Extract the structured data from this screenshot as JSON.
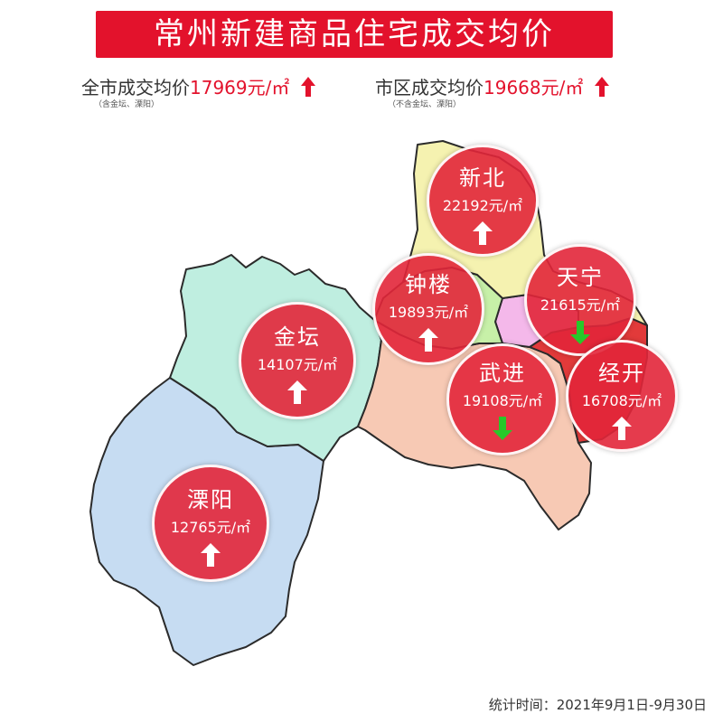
{
  "title": "常州新建商品住宅成交均价",
  "city_avg": {
    "label": "全市成交均价",
    "value": "17969元/㎡",
    "note": "（含金坛、溧阳）",
    "trend": "up"
  },
  "urban_avg": {
    "label": "市区成交均价",
    "value": "19668元/㎡",
    "note": "（不含金坛、溧阳）",
    "trend": "up"
  },
  "districts": [
    {
      "name": "新北",
      "price": "22192元/㎡",
      "trend": "up"
    },
    {
      "name": "钟楼",
      "price": "19893元/㎡",
      "trend": "up"
    },
    {
      "name": "天宁",
      "price": "21615元/㎡",
      "trend": "down"
    },
    {
      "name": "武进",
      "price": "19108元/㎡",
      "trend": "down"
    },
    {
      "name": "经开",
      "price": "16708元/㎡",
      "trend": "up"
    },
    {
      "name": "金坛",
      "price": "14107元/㎡",
      "trend": "up"
    },
    {
      "name": "溧阳",
      "price": "12765元/㎡",
      "trend": "up"
    }
  ],
  "colors": {
    "accent_red": "#e3122c",
    "trend_up": "#ffffff",
    "trend_down": "#27c82a",
    "region_xinbei": "#f5f2b0",
    "region_zhonglou": "#c7f0a8",
    "region_tianning": "#f4b8ea",
    "region_wujin": "#f7c9b4",
    "region_jingkai": "#e23a3a",
    "region_jintan": "#bfeee0",
    "region_liyang": "#c6dcf2"
  },
  "footer": "统计时间：2021年9月1日-9月30日"
}
